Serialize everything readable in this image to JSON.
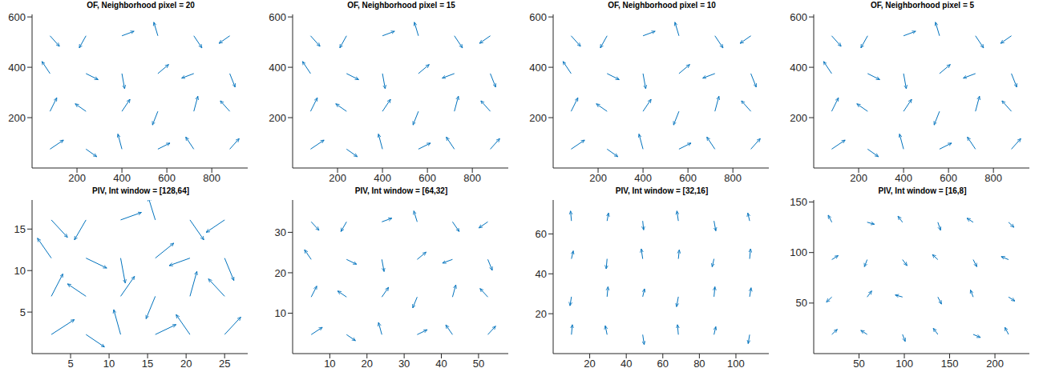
{
  "chart_data": [
    {
      "type": "quiver",
      "title": "OF, Neighborhood pixel = 20",
      "color": "#0072bd",
      "xlim": [
        0,
        960
      ],
      "ylim": [
        0,
        610
      ],
      "xticks": [
        200,
        400,
        600,
        800
      ],
      "yticks": [
        200,
        400,
        600
      ],
      "x": [
        80,
        240,
        400,
        560,
        720,
        880,
        80,
        240,
        400,
        560,
        720,
        880,
        80,
        240,
        400,
        560,
        720,
        880,
        80,
        240,
        400,
        560,
        720,
        880
      ],
      "y": [
        75,
        75,
        75,
        75,
        75,
        75,
        225,
        225,
        225,
        225,
        225,
        225,
        375,
        375,
        375,
        375,
        375,
        375,
        525,
        525,
        525,
        525,
        525,
        525
      ],
      "u": [
        60,
        48,
        -18,
        54,
        -36,
        42,
        30,
        -48,
        36,
        -24,
        18,
        -42,
        -36,
        54,
        12,
        48,
        -54,
        24,
        42,
        -30,
        54,
        -18,
        36,
        -48
      ],
      "v": [
        36,
        -30,
        60,
        24,
        48,
        42,
        54,
        30,
        48,
        -54,
        60,
        42,
        48,
        -24,
        -60,
        36,
        -18,
        -54,
        -42,
        -48,
        18,
        54,
        -48,
        -30
      ]
    },
    {
      "type": "quiver",
      "title": "OF, Neighborhood pixel = 15",
      "color": "#0072bd",
      "xlim": [
        0,
        960
      ],
      "ylim": [
        0,
        610
      ],
      "xticks": [
        200,
        400,
        600,
        800
      ],
      "yticks": [
        200,
        400,
        600
      ],
      "x": [
        80,
        240,
        400,
        560,
        720,
        880,
        80,
        240,
        400,
        560,
        720,
        880,
        80,
        240,
        400,
        560,
        720,
        880,
        80,
        240,
        400,
        560,
        720,
        880
      ],
      "y": [
        75,
        75,
        75,
        75,
        75,
        75,
        225,
        225,
        225,
        225,
        225,
        225,
        375,
        375,
        375,
        375,
        375,
        375,
        525,
        525,
        525,
        525,
        525,
        525
      ],
      "u": [
        60,
        48,
        -18,
        54,
        -36,
        42,
        30,
        -48,
        36,
        -24,
        18,
        -42,
        -36,
        54,
        12,
        48,
        -54,
        24,
        42,
        -30,
        54,
        -18,
        36,
        -48
      ],
      "v": [
        36,
        -30,
        60,
        24,
        48,
        42,
        54,
        30,
        48,
        -54,
        60,
        42,
        48,
        -24,
        -60,
        36,
        -18,
        -54,
        -42,
        -48,
        18,
        54,
        -48,
        -30
      ]
    },
    {
      "type": "quiver",
      "title": "OF, Neighborhood pixel = 10",
      "color": "#0072bd",
      "xlim": [
        0,
        960
      ],
      "ylim": [
        0,
        610
      ],
      "xticks": [
        200,
        400,
        600,
        800
      ],
      "yticks": [
        200,
        400,
        600
      ],
      "x": [
        80,
        240,
        400,
        560,
        720,
        880,
        80,
        240,
        400,
        560,
        720,
        880,
        80,
        240,
        400,
        560,
        720,
        880,
        80,
        240,
        400,
        560,
        720,
        880
      ],
      "y": [
        75,
        75,
        75,
        75,
        75,
        75,
        225,
        225,
        225,
        225,
        225,
        225,
        375,
        375,
        375,
        375,
        375,
        375,
        525,
        525,
        525,
        525,
        525,
        525
      ],
      "u": [
        60,
        48,
        -18,
        54,
        -36,
        42,
        30,
        -48,
        36,
        -24,
        18,
        -42,
        -36,
        54,
        12,
        48,
        -54,
        24,
        42,
        -30,
        54,
        -18,
        36,
        -48
      ],
      "v": [
        36,
        -30,
        60,
        24,
        48,
        42,
        54,
        30,
        48,
        -54,
        60,
        42,
        48,
        -24,
        -60,
        36,
        -18,
        -54,
        -42,
        -48,
        18,
        54,
        -48,
        -30
      ]
    },
    {
      "type": "quiver",
      "title": "OF, Neighborhood pixel = 5",
      "color": "#0072bd",
      "xlim": [
        0,
        960
      ],
      "ylim": [
        0,
        610
      ],
      "xticks": [
        200,
        400,
        600,
        800
      ],
      "yticks": [
        200,
        400,
        600
      ],
      "x": [
        80,
        240,
        400,
        560,
        720,
        880,
        80,
        240,
        400,
        560,
        720,
        880,
        80,
        240,
        400,
        560,
        720,
        880,
        80,
        240,
        400,
        560,
        720,
        880
      ],
      "y": [
        75,
        75,
        75,
        75,
        75,
        75,
        225,
        225,
        225,
        225,
        225,
        225,
        375,
        375,
        375,
        375,
        375,
        375,
        525,
        525,
        525,
        525,
        525,
        525
      ],
      "u": [
        60,
        48,
        -18,
        54,
        -36,
        42,
        30,
        -48,
        36,
        -24,
        18,
        -42,
        -36,
        54,
        12,
        48,
        -54,
        24,
        42,
        -30,
        54,
        -18,
        36,
        -48
      ],
      "v": [
        36,
        -30,
        60,
        24,
        48,
        42,
        54,
        30,
        48,
        -54,
        60,
        42,
        48,
        -24,
        -60,
        36,
        -18,
        -54,
        -42,
        -48,
        18,
        54,
        -48,
        -30
      ]
    },
    {
      "type": "quiver",
      "title": "PIV, Int window = [128,64]",
      "color": "#0072bd",
      "xlim": [
        0,
        28
      ],
      "ylim": [
        0,
        18.5
      ],
      "xticks": [
        5,
        10,
        15,
        20,
        25
      ],
      "yticks": [
        5,
        10,
        15
      ],
      "x": [
        2.5,
        7,
        11.5,
        16,
        20.5,
        25,
        2.5,
        7,
        11.5,
        16,
        20.5,
        25,
        2.5,
        7,
        11.5,
        16,
        20.5,
        25,
        2.5,
        7,
        11.5,
        16,
        20.5,
        25
      ],
      "y": [
        2.3,
        2.3,
        2.3,
        2.3,
        2.3,
        2.3,
        6.9,
        6.9,
        6.9,
        6.9,
        6.9,
        6.9,
        11.5,
        11.5,
        11.5,
        11.5,
        11.5,
        11.5,
        16.1,
        16.1,
        16.1,
        16.1,
        16.1,
        16.1
      ],
      "u": [
        3,
        2.4,
        -0.9,
        2.7,
        -1.8,
        2.1,
        1.5,
        -2.4,
        1.8,
        -1.2,
        0.9,
        -2.1,
        -1.8,
        2.7,
        0.6,
        2.4,
        -2.7,
        1.2,
        2.1,
        -1.5,
        2.7,
        -0.9,
        1.8,
        -2.4
      ],
      "v": [
        1.8,
        -1.5,
        3,
        1.2,
        2.4,
        2.1,
        2.7,
        1.5,
        2.4,
        -2.7,
        3,
        2.1,
        2.4,
        -1.2,
        -3,
        1.8,
        -0.9,
        -2.7,
        -2.1,
        -2.4,
        0.9,
        2.7,
        -2.4,
        -1.5
      ]
    },
    {
      "type": "quiver",
      "title": "PIV, Int window = [64,32]",
      "color": "#0072bd",
      "xlim": [
        0,
        58
      ],
      "ylim": [
        0,
        38
      ],
      "xticks": [
        10,
        20,
        30,
        40,
        50
      ],
      "yticks": [
        10,
        20,
        30
      ],
      "x": [
        5,
        14.5,
        24,
        33.5,
        43,
        52.5,
        5,
        14.5,
        24,
        33.5,
        43,
        52.5,
        5,
        14.5,
        24,
        33.5,
        43,
        52.5,
        5,
        14.5,
        24,
        33.5,
        43,
        52.5
      ],
      "y": [
        4.7,
        4.7,
        4.7,
        4.7,
        4.7,
        4.7,
        14,
        14,
        14,
        14,
        14,
        14,
        23.3,
        23.3,
        23.3,
        23.3,
        23.3,
        23.3,
        32.6,
        32.6,
        32.6,
        32.6,
        32.6,
        32.6
      ],
      "u": [
        3,
        2.4,
        -0.9,
        2.7,
        -1.8,
        2.1,
        1.5,
        -2.4,
        1.8,
        -1.2,
        0.9,
        -2.1,
        -1.8,
        2.7,
        0.6,
        2.4,
        -2.7,
        1.2,
        2.1,
        -1.5,
        2.7,
        -0.9,
        1.8,
        -2.4
      ],
      "v": [
        1.8,
        -1.5,
        3,
        1.2,
        2.4,
        2.1,
        2.7,
        1.5,
        2.4,
        -2.7,
        3,
        2.1,
        2.4,
        -1.2,
        -3,
        1.8,
        -0.9,
        -2.7,
        -2.1,
        -2.4,
        0.9,
        2.7,
        -2.4,
        -1.5
      ]
    },
    {
      "type": "quiver",
      "title": "PIV, Int window = [32,16]",
      "color": "#0072bd",
      "xlim": [
        0,
        118
      ],
      "ylim": [
        0,
        77
      ],
      "xticks": [
        20,
        40,
        60,
        80,
        100
      ],
      "yticks": [
        20,
        40,
        60
      ],
      "x": [
        10,
        29.5,
        49,
        68.5,
        88,
        107.5,
        10,
        29.5,
        49,
        68.5,
        88,
        107.5,
        10,
        29.5,
        49,
        68.5,
        88,
        107.5,
        10,
        29.5,
        49,
        68.5,
        88,
        107.5
      ],
      "y": [
        9.5,
        9.5,
        9.5,
        9.5,
        9.5,
        9.5,
        28.5,
        28.5,
        28.5,
        28.5,
        28.5,
        28.5,
        47.5,
        47.5,
        47.5,
        47.5,
        47.5,
        47.5,
        66.5,
        66.5,
        66.5,
        66.5,
        66.5,
        66.5
      ],
      "u": [
        0.5,
        -1,
        0.8,
        -0.5,
        1,
        -0.8,
        -0.8,
        0.5,
        1,
        -1,
        0.5,
        0.8,
        1,
        -0.5,
        -0.8,
        0.5,
        -1,
        0.5,
        -0.5,
        0.8,
        0.5,
        -0.8,
        1,
        -1
      ],
      "v": [
        5,
        4.5,
        -5,
        5,
        4,
        -4.5,
        -4.5,
        5,
        4,
        -5,
        5,
        4.5,
        4,
        -5,
        5,
        4.5,
        -4,
        5,
        5,
        4,
        -4.5,
        5,
        -5,
        4
      ]
    },
    {
      "type": "quiver",
      "title": "PIV, Int window = [16,8]",
      "color": "#0072bd",
      "xlim": [
        0,
        238
      ],
      "ylim": [
        0,
        152
      ],
      "xticks": [
        50,
        100,
        150,
        200
      ],
      "yticks": [
        50,
        100,
        150
      ],
      "x": [
        20,
        59,
        98,
        137,
        176,
        215,
        20,
        59,
        98,
        137,
        176,
        215,
        20,
        59,
        98,
        137,
        176,
        215,
        20,
        59,
        98,
        137,
        176,
        215
      ],
      "y": [
        19,
        19,
        19,
        19,
        19,
        19,
        56,
        56,
        56,
        56,
        56,
        56,
        93,
        93,
        93,
        93,
        93,
        93,
        130,
        130,
        130,
        130,
        130,
        130
      ],
      "u": [
        6,
        -7,
        3,
        -5,
        8,
        -4,
        -6,
        5,
        -8,
        4,
        -3,
        7,
        7,
        -3,
        5,
        -6,
        4,
        -8,
        -4,
        8,
        -5,
        3,
        -7,
        6
      ],
      "v": [
        5,
        4,
        -7,
        6,
        -3,
        7,
        -5,
        6,
        2,
        -7,
        7,
        -4,
        4,
        -7,
        -6,
        5,
        -7,
        3,
        7,
        -2,
        6,
        -8,
        4,
        -5
      ]
    }
  ]
}
